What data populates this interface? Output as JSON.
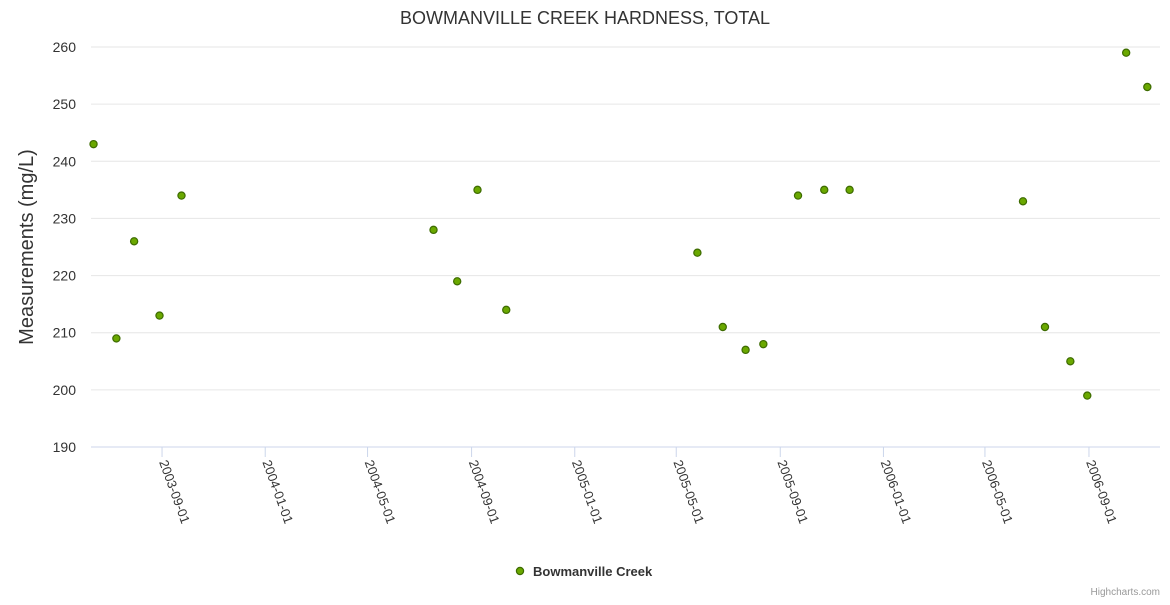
{
  "chart_data": {
    "type": "scatter",
    "title": "BOWMANVILLE CREEK HARDNESS, TOTAL",
    "ylabel": "Measurements (mg/L)",
    "xlabel": "",
    "ylim": [
      190,
      260
    ],
    "yticks": [
      "190",
      "200",
      "210",
      "220",
      "230",
      "240",
      "250",
      "260"
    ],
    "xlim": [
      "2003-06-09",
      "2006-11-24"
    ],
    "xticks": [
      "2003-09-01",
      "2004-01-01",
      "2004-05-01",
      "2004-09-01",
      "2005-01-01",
      "2005-05-01",
      "2005-09-01",
      "2006-01-01",
      "2006-05-01",
      "2006-09-01"
    ],
    "grid": true,
    "legend": "bottom-center",
    "series": [
      {
        "name": "Bowmanville Creek",
        "color": "#6aa800",
        "points": [
          {
            "x": "2003-06-12",
            "y": 243
          },
          {
            "x": "2003-07-09",
            "y": 209
          },
          {
            "x": "2003-07-30",
            "y": 226
          },
          {
            "x": "2003-08-29",
            "y": 213
          },
          {
            "x": "2003-09-24",
            "y": 234
          },
          {
            "x": "2004-07-18",
            "y": 228
          },
          {
            "x": "2004-08-15",
            "y": 219
          },
          {
            "x": "2004-09-08",
            "y": 235
          },
          {
            "x": "2004-10-12",
            "y": 214
          },
          {
            "x": "2005-05-26",
            "y": 224
          },
          {
            "x": "2005-06-25",
            "y": 211
          },
          {
            "x": "2005-07-22",
            "y": 207
          },
          {
            "x": "2005-08-12",
            "y": 208
          },
          {
            "x": "2005-09-22",
            "y": 234
          },
          {
            "x": "2005-10-23",
            "y": 235
          },
          {
            "x": "2005-11-22",
            "y": 235
          },
          {
            "x": "2006-06-15",
            "y": 233
          },
          {
            "x": "2006-07-11",
            "y": 211
          },
          {
            "x": "2006-08-10",
            "y": 205
          },
          {
            "x": "2006-08-30",
            "y": 199
          },
          {
            "x": "2006-10-15",
            "y": 259
          },
          {
            "x": "2006-11-09",
            "y": 253
          }
        ]
      }
    ]
  },
  "credits": "Highcharts.com"
}
